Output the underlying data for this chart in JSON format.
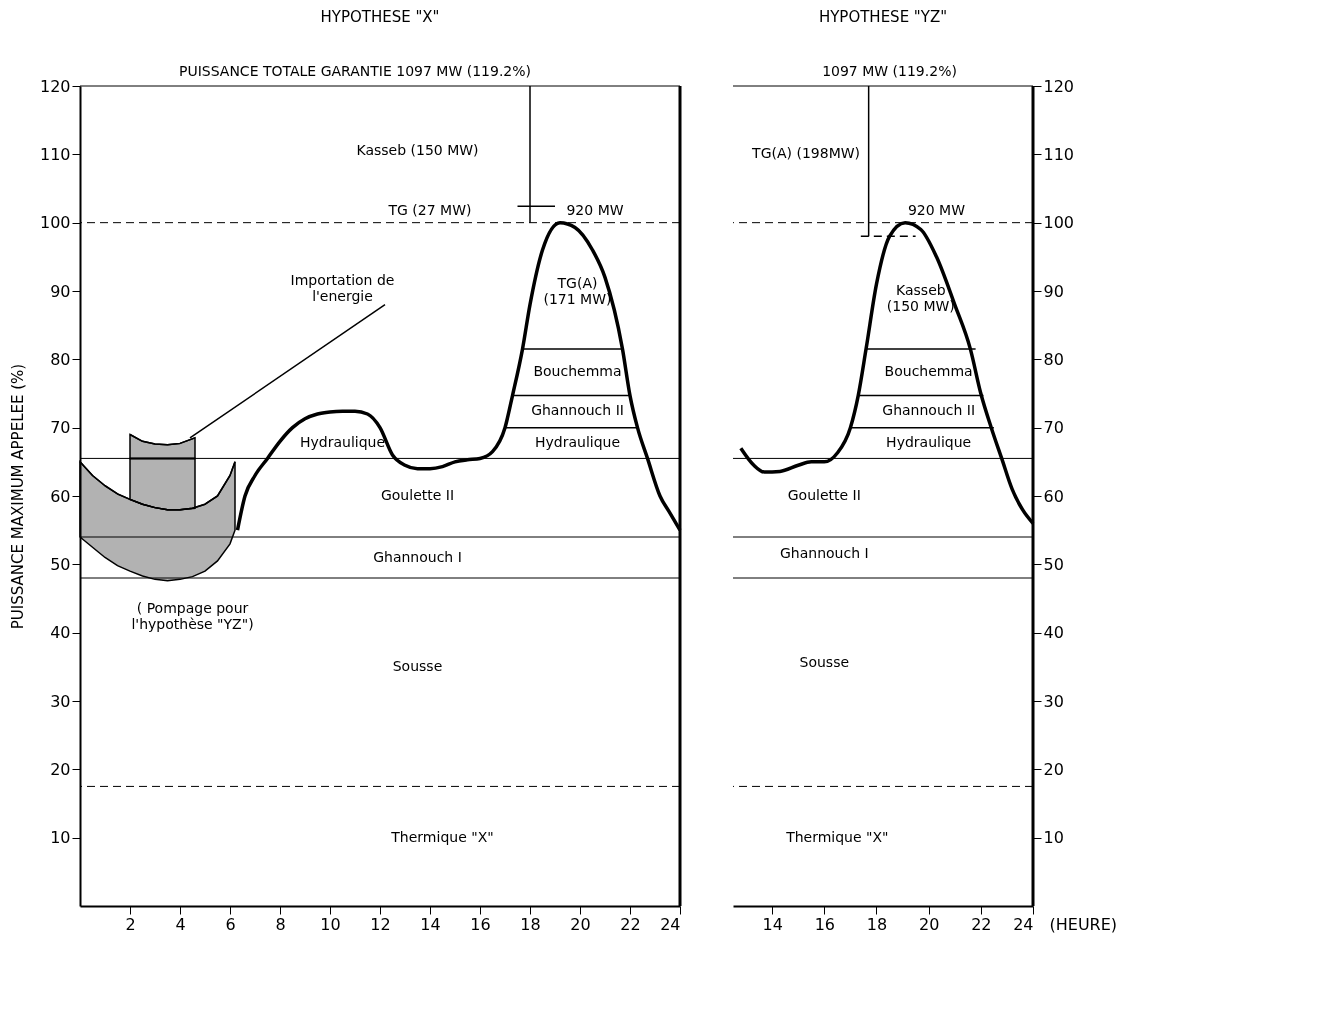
{
  "chart_data": [
    {
      "type": "line",
      "title": "HYPOTHESE \"X\"",
      "ylabel": "PUISSANCE MAXIMUM APPELEE (%)",
      "xlim": [
        0,
        24
      ],
      "xticks": [
        2,
        4,
        6,
        8,
        10,
        12,
        14,
        16,
        18,
        20,
        22,
        24
      ],
      "ylim": [
        0,
        120
      ],
      "yticks": [
        10,
        20,
        30,
        40,
        50,
        60,
        70,
        80,
        90,
        100,
        110,
        120
      ],
      "grid": false,
      "series": [
        {
          "color": "#000000",
          "x": [
            6.3,
            6.6,
            7,
            7.5,
            8,
            8.5,
            9,
            9.5,
            10,
            10.5,
            11,
            11.5,
            12,
            12.5,
            13,
            13.5,
            14,
            14.5,
            15,
            15.5,
            16,
            16.5,
            17,
            17.3,
            17.7,
            18,
            18.5,
            19.2,
            19.8,
            20.5,
            21,
            21.7,
            22,
            22.3,
            22.7,
            23.2,
            23.6,
            24
          ],
          "values": [
            55,
            60,
            63,
            65.5,
            68,
            70,
            71.3,
            72,
            72.3,
            72.4,
            72.4,
            72,
            70,
            66,
            64.5,
            64,
            64,
            64.3,
            65,
            65.3,
            65.5,
            66.5,
            70,
            74.7,
            81.5,
            88,
            96,
            100,
            99.3,
            96,
            92,
            81.5,
            74.7,
            70,
            65.5,
            60,
            57.5,
            55
          ]
        },
        {
          "color": "#000000",
          "x": [
            0,
            0.5,
            1,
            1.5,
            2,
            2.5,
            3,
            3.5,
            4,
            4.5,
            5,
            5.5,
            6,
            6.2
          ],
          "values": [
            65,
            63,
            61.5,
            60.3,
            59.5,
            58.8,
            58.3,
            58,
            58,
            58.2,
            58.8,
            60,
            63,
            65
          ],
          "upper": [
            65,
            63,
            61.5,
            60.3,
            59.5,
            58.8,
            58.3,
            58,
            58,
            58.2,
            58.8,
            60,
            63,
            65
          ],
          "lower": [
            54,
            52.5,
            51,
            49.8,
            49,
            48.3,
            47.8,
            47.6,
            47.8,
            48.2,
            49,
            50.5,
            53,
            55
          ]
        },
        {
          "color": "#000000",
          "x": [
            2,
            2.5,
            3,
            3.5,
            4,
            4.6
          ],
          "values": [
            65.5,
            65.5,
            65.5,
            65.5,
            65.5,
            65.5
          ],
          "upper": [
            65.5,
            65.5,
            65.5,
            65.5,
            65.5,
            65.5
          ],
          "lower": [
            59.5,
            58.8,
            58.3,
            58,
            58,
            58.2
          ]
        },
        {
          "color": "#000000",
          "x": [
            2,
            2.5,
            3,
            3.5,
            4,
            4.6
          ],
          "values": [
            69,
            68,
            67.6,
            67.5,
            67.7,
            68.5
          ],
          "upper": [
            69,
            68,
            67.6,
            67.5,
            67.7,
            68.5
          ],
          "lower": [
            65.5,
            65.5,
            65.5,
            65.5,
            65.5,
            65.5
          ]
        },
        {
          "color": "#000000",
          "x": [
            4.4,
            12.2
          ],
          "values": [
            68.5,
            88
          ]
        },
        {
          "color": "#000000",
          "x": [
            17.7,
            21.7
          ],
          "values": [
            81.5,
            81.5
          ]
        },
        {
          "color": "#000000",
          "x": [
            17.3,
            22
          ],
          "values": [
            74.7,
            74.7
          ]
        },
        {
          "color": "#000000",
          "x": [
            17,
            22.3
          ],
          "values": [
            70,
            70
          ]
        },
        {
          "color": "#000000",
          "x": [
            18,
            18
          ],
          "values": [
            100,
            120
          ]
        },
        {
          "color": "#000000",
          "x": [
            17.5,
            19
          ],
          "values": [
            102.4,
            102.4
          ]
        }
      ],
      "ref_lines": [
        {
          "axis": "y",
          "value": 120
        },
        {
          "axis": "y",
          "value": 100,
          "line_style": "dashed"
        },
        {
          "axis": "y",
          "value": 65.5
        },
        {
          "axis": "y",
          "value": 54
        },
        {
          "axis": "y",
          "value": 48
        },
        {
          "axis": "y",
          "value": 17.5,
          "line_style": "dashed"
        },
        {
          "axis": "x",
          "value": 24
        }
      ],
      "annotations": [
        "PUISSANCE TOTALE GARANTIE 1097 MW (119.2%)",
        "Kasseb (150 MW)",
        "TG (27 MW)",
        "920 MW",
        "TG(A)\n(171 MW)",
        "Bouchemma",
        "Ghannouch II",
        "Hydraulique",
        "Hydraulique",
        "Goulette II",
        "Ghannouch I",
        "Sousse",
        "Thermique \"X\"",
        "Importation de\nl'energie",
        "( Pompage pour\nl'hypothèse \"YZ\")"
      ]
    },
    {
      "type": "line",
      "title": "HYPOTHESE \"YZ\"",
      "xlabel": "(HEURE)",
      "xlim": [
        12.5,
        24
      ],
      "xticks": [
        14,
        16,
        18,
        20,
        22,
        24
      ],
      "ylim": [
        0,
        120
      ],
      "yticks": [
        10,
        20,
        30,
        40,
        50,
        60,
        70,
        80,
        90,
        100,
        110,
        120
      ],
      "grid": false,
      "series": [
        {
          "color": "#000000",
          "x": [
            12.8,
            13.3,
            13.7,
            14.3,
            15,
            15.5,
            16,
            16.5,
            17,
            17.3,
            17.6,
            18,
            18.5,
            19.1,
            19.7,
            20.3,
            21,
            21.6,
            22,
            22.4,
            22.8,
            23.2,
            23.6,
            24
          ],
          "values": [
            67,
            64.5,
            63.5,
            63.6,
            64.5,
            65,
            65,
            66.3,
            70,
            74.7,
            81.5,
            91,
            98,
            100,
            99,
            95,
            88,
            81.5,
            75,
            70,
            65.5,
            61,
            58,
            56
          ]
        },
        {
          "color": "#000000",
          "x": [
            17.6,
            21.8
          ],
          "values": [
            81.5,
            81.5
          ]
        },
        {
          "color": "#000000",
          "x": [
            17.3,
            22.1
          ],
          "values": [
            74.7,
            74.7
          ]
        },
        {
          "color": "#000000",
          "x": [
            17,
            22.5
          ],
          "values": [
            70,
            70
          ]
        },
        {
          "color": "#000000",
          "x": [
            17.7,
            17.7
          ],
          "values": [
            98,
            120
          ]
        },
        {
          "color": "#000000",
          "line_style": "dashed",
          "x": [
            17.4,
            19.5
          ],
          "values": [
            98,
            98
          ]
        }
      ],
      "ref_lines": [
        {
          "axis": "y",
          "value": 120
        },
        {
          "axis": "y",
          "value": 100,
          "line_style": "dashed"
        },
        {
          "axis": "y",
          "value": 65.5
        },
        {
          "axis": "y",
          "value": 54
        },
        {
          "axis": "y",
          "value": 48
        },
        {
          "axis": "y",
          "value": 17.5,
          "line_style": "dashed"
        },
        {
          "axis": "x",
          "value": 24
        }
      ],
      "annotations": [
        "1097 MW (119.2%)",
        "TG(A) (198MW)",
        "920 MW",
        "Kasseb\n(150 MW)",
        "Bouchemma",
        "Ghannouch II",
        "Hydraulique",
        "Goulette II",
        "Ghannouch I",
        "Sousse",
        "Thermique \"X\""
      ]
    }
  ]
}
